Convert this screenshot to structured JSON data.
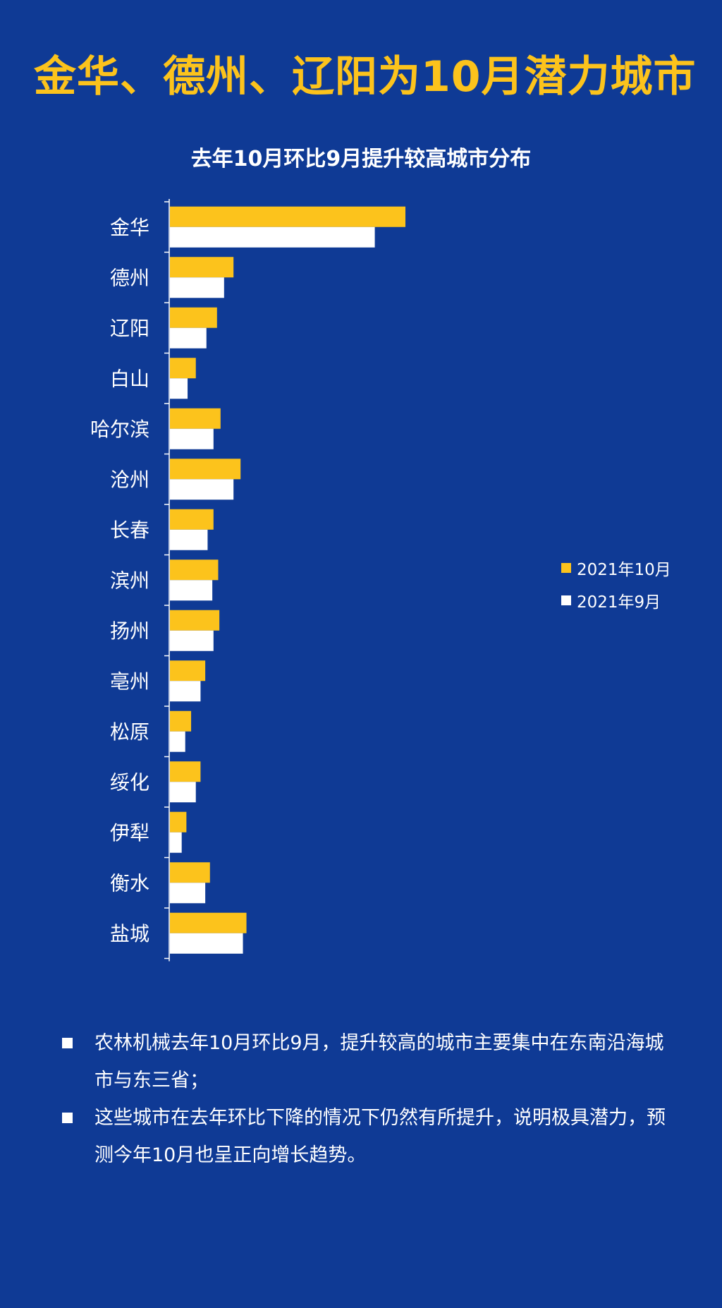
{
  "page": {
    "title": "金华、德州、辽阳为10月潜力城市"
  },
  "colors": {
    "background": "#0f3a95",
    "accent": "#fcc31c",
    "series_oct": "#fcc31c",
    "series_sep": "#ffffff"
  },
  "chart_data": {
    "type": "bar",
    "orientation": "horizontal",
    "title": "去年10月环比9月提升较高城市分布",
    "categories": [
      "金华",
      "德州",
      "辽阳",
      "白山",
      "哈尔滨",
      "沧州",
      "长春",
      "滨州",
      "扬州",
      "亳州",
      "松原",
      "绥化",
      "伊犁",
      "衡水",
      "盐城"
    ],
    "series": [
      {
        "name": "2021年10月",
        "color": "#fcc31c",
        "values": [
          100,
          27,
          20,
          11,
          21.5,
          30,
          18.5,
          20.5,
          21,
          15,
          9,
          13,
          7,
          17,
          32.5
        ]
      },
      {
        "name": "2021年9月",
        "color": "#ffffff",
        "values": [
          87,
          23,
          15.5,
          7.5,
          18.5,
          27,
          16,
          18,
          18.5,
          13,
          6.5,
          11,
          5,
          15,
          31
        ]
      }
    ],
    "xlim": [
      0,
      100
    ],
    "x_axis_visible": false,
    "grid": false,
    "legend_position": "right"
  },
  "notes": [
    "农林机械去年10月环比9月，提升较高的城市主要集中在东南沿海城市与东三省；",
    "这些城市在去年环比下降的情况下仍然有所提升，说明极具潜力，预测今年10月也呈正向增长趋势。"
  ]
}
